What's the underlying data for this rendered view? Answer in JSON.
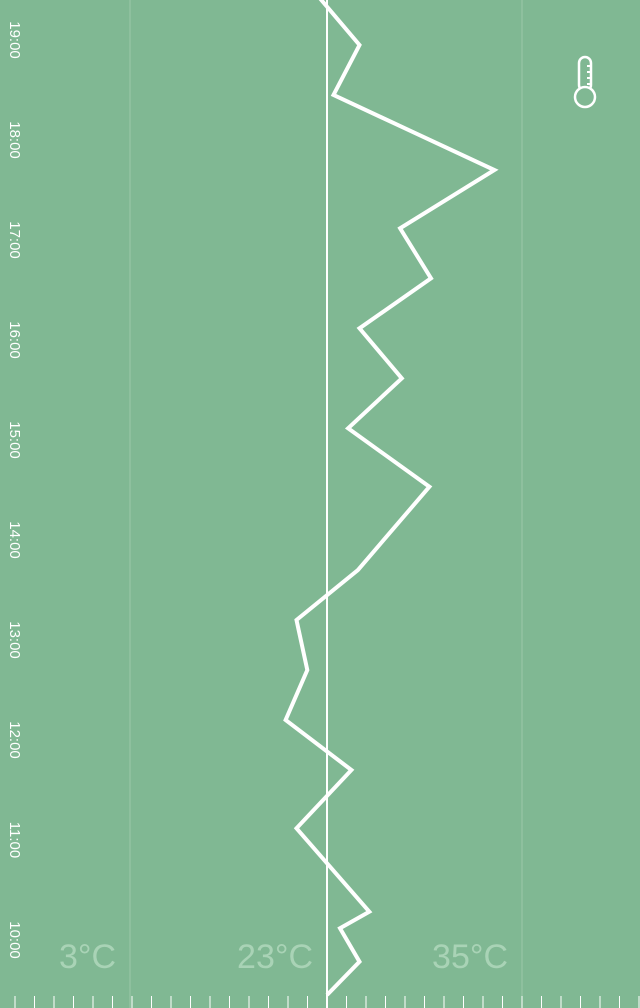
{
  "colors": {
    "background": "#80b893",
    "line": "#ffffff",
    "grid": "#9cc9aa",
    "label": "#a9d3b6",
    "time_label": "#ffffff"
  },
  "icons": {
    "top_right": "thermometer-icon"
  },
  "chart_data": {
    "type": "line",
    "orientation": "vertical-time",
    "title": "",
    "xlabel": "",
    "ylabel": "",
    "x_unit": "°C",
    "time_labels": [
      "10:00",
      "11:00",
      "12:00",
      "13:00",
      "14:00",
      "15:00",
      "16:00",
      "17:00",
      "18:00",
      "19:00"
    ],
    "temp_labels": [
      "3°C",
      "23°C",
      "35°C"
    ],
    "reference_temp": 23,
    "series": [
      {
        "points": [
          {
            "time": "09:27",
            "temp": 23.0
          },
          {
            "time": "09:47",
            "temp": 25.0
          },
          {
            "time": "10:07",
            "temp": 23.8
          },
          {
            "time": "10:17",
            "temp": 25.6
          },
          {
            "time": "11:07",
            "temp": 19.9
          },
          {
            "time": "11:42",
            "temp": 24.5
          },
          {
            "time": "12:12",
            "temp": 18.8
          },
          {
            "time": "12:42",
            "temp": 21.0
          },
          {
            "time": "13:12",
            "temp": 19.9
          },
          {
            "time": "13:42",
            "temp": 24.9
          },
          {
            "time": "14:32",
            "temp": 29.3
          },
          {
            "time": "15:07",
            "temp": 24.3
          },
          {
            "time": "15:37",
            "temp": 27.6
          },
          {
            "time": "16:07",
            "temp": 25.0
          },
          {
            "time": "16:37",
            "temp": 29.4
          },
          {
            "time": "17:07",
            "temp": 27.5
          },
          {
            "time": "17:42",
            "temp": 33.3
          },
          {
            "time": "18:27",
            "temp": 23.4
          },
          {
            "time": "18:57",
            "temp": 25.0
          },
          {
            "time": "19:27",
            "temp": 22.0
          }
        ]
      }
    ]
  }
}
